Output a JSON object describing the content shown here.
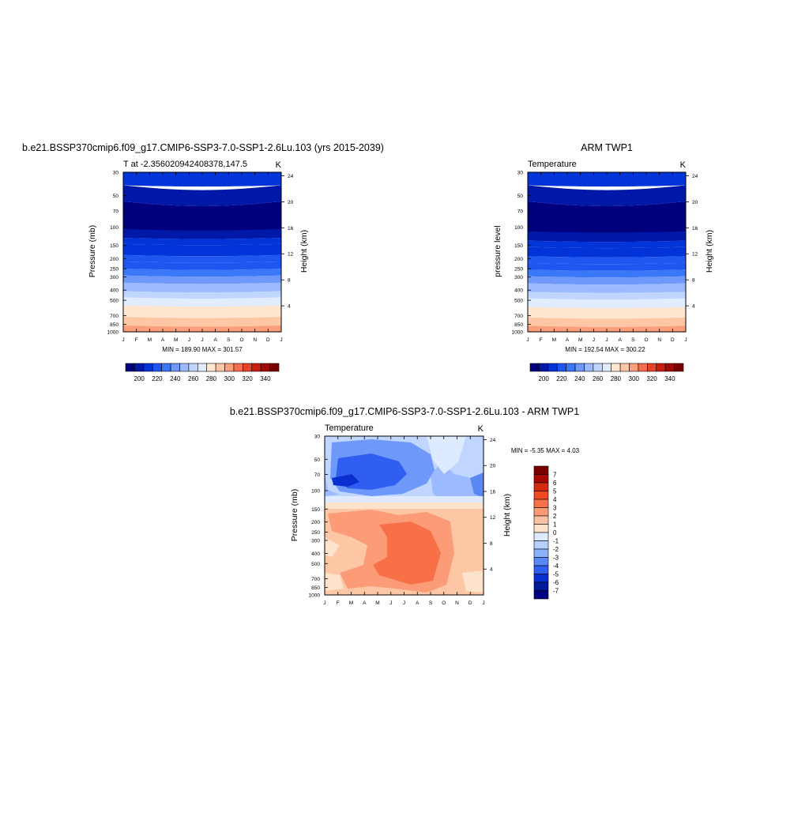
{
  "chart_data": [
    {
      "type": "heatmap",
      "title": "b.e21.BSSP370cmip6.f09_g17.CMIP6-SSP3-7.0-SSP1-2.6Lu.103 (yrs 2015-2039)",
      "subtitle_left": "T at -2.356020942408378,147.5",
      "subtitle_right": "K",
      "ylabel": "Pressure (mb)",
      "ylabel_right": "Height (km)",
      "x_ticks": [
        "J",
        "F",
        "M",
        "A",
        "M",
        "J",
        "J",
        "A",
        "S",
        "O",
        "N",
        "D",
        "J"
      ],
      "y_ticks": [
        "30",
        "50",
        "70",
        "100",
        "150",
        "200",
        "250",
        "300",
        "400",
        "500",
        "700",
        "850",
        "1000"
      ],
      "y_ticks_right": [
        "24",
        "20",
        "16",
        "12",
        "8",
        "4"
      ],
      "minmax": "MIN = 189.90  MAX = 301.57",
      "colorbar_labels": [
        "200",
        "220",
        "240",
        "260",
        "280",
        "300",
        "320",
        "340"
      ],
      "band_boundaries_mb": [
        30,
        40,
        57,
        105,
        127,
        145,
        185,
        213,
        250,
        290,
        340,
        410,
        470,
        560,
        720,
        870,
        1000
      ],
      "band_values_K": [
        205,
        200,
        190,
        200,
        205,
        210,
        215,
        220,
        225,
        235,
        245,
        255,
        265,
        275,
        285,
        295
      ],
      "ylim": [
        1000,
        30
      ]
    },
    {
      "type": "heatmap",
      "title": "ARM TWP1",
      "subtitle_left": "Temperature",
      "subtitle_right": "K",
      "ylabel": "pressure level",
      "ylabel_right": "Height (km)",
      "x_ticks": [
        "J",
        "F",
        "M",
        "A",
        "M",
        "J",
        "J",
        "A",
        "S",
        "O",
        "N",
        "D",
        "J"
      ],
      "y_ticks": [
        "30",
        "50",
        "70",
        "100",
        "150",
        "200",
        "250",
        "300",
        "400",
        "500",
        "700",
        "850",
        "1000"
      ],
      "y_ticks_right": [
        "24",
        "20",
        "16",
        "12",
        "8",
        "4"
      ],
      "minmax": "MIN = 192.54  MAX = 300.22",
      "colorbar_labels": [
        "200",
        "220",
        "240",
        "260",
        "280",
        "300",
        "320",
        "340"
      ],
      "band_boundaries_mb": [
        30,
        40,
        57,
        110,
        135,
        155,
        190,
        220,
        255,
        295,
        345,
        415,
        480,
        580,
        730,
        875,
        1000
      ],
      "band_values_K": [
        205,
        200,
        190,
        200,
        205,
        210,
        215,
        220,
        225,
        235,
        245,
        255,
        265,
        275,
        285,
        295
      ],
      "ylim": [
        1000,
        30
      ]
    },
    {
      "type": "heatmap",
      "title": "b.e21.BSSP370cmip6.f09_g17.CMIP6-SSP3-7.0-SSP1-2.6Lu.103 - ARM TWP1",
      "subtitle_left": "Temperature",
      "subtitle_right": "K",
      "ylabel": "Pressure (mb)",
      "ylabel_right": "Height (km)",
      "x_ticks": [
        "J",
        "F",
        "M",
        "A",
        "M",
        "J",
        "J",
        "A",
        "S",
        "O",
        "N",
        "D",
        "J"
      ],
      "y_ticks": [
        "30",
        "50",
        "70",
        "100",
        "150",
        "200",
        "250",
        "300",
        "400",
        "500",
        "700",
        "850",
        "1000"
      ],
      "y_ticks_right": [
        "24",
        "20",
        "16",
        "12",
        "8",
        "4"
      ],
      "minmax": "MIN =  -5.35  MAX =   4.03",
      "colorbar_labels": [
        "7",
        "6",
        "5",
        "4",
        "3",
        "2",
        "1",
        "0",
        "-1",
        "-2",
        "-3",
        "-4",
        "-5",
        "-6",
        "-7"
      ],
      "ylim": [
        1000,
        30
      ]
    }
  ],
  "colors": {
    "temperature_scale": [
      "#00007f",
      "#0018a8",
      "#0034d8",
      "#1e56f0",
      "#3a78f8",
      "#6e98fa",
      "#9bbaff",
      "#c0d6ff",
      "#e2ecff",
      "#fee6cf",
      "#fdc7a6",
      "#fa9e7c",
      "#f56f4e",
      "#e8432a",
      "#c81e10",
      "#a00a04",
      "#7a0000"
    ],
    "difference_scale": [
      "#7a0000",
      "#a80a02",
      "#d42a10",
      "#f04a22",
      "#f87048",
      "#fb9b78",
      "#fdc2a2",
      "#fde3cc",
      "#ddeaff",
      "#b8d0ff",
      "#8cb0fb",
      "#5c88f6",
      "#2f5ef0",
      "#0a2fd0",
      "#001a9c",
      "#000080"
    ]
  }
}
